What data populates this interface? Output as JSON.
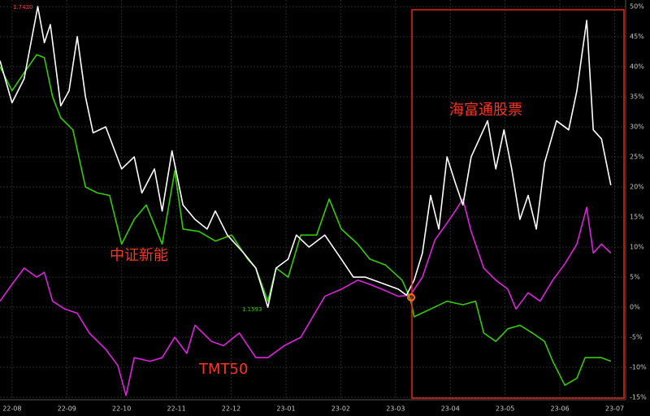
{
  "chart_data": {
    "type": "line",
    "xlim": [
      -0.22,
      11.2
    ],
    "ylim": [
      -15.4,
      51.1
    ],
    "xticks": [
      {
        "value": 0,
        "label": "22-08"
      },
      {
        "value": 1,
        "label": "22-09"
      },
      {
        "value": 2,
        "label": "22-10"
      },
      {
        "value": 3,
        "label": "22-11"
      },
      {
        "value": 4,
        "label": "22-12"
      },
      {
        "value": 5,
        "label": "23-01"
      },
      {
        "value": 6,
        "label": "23-02"
      },
      {
        "value": 7,
        "label": "23-03"
      },
      {
        "value": 8,
        "label": "23-04"
      },
      {
        "value": 9,
        "label": "23-05"
      },
      {
        "value": 10,
        "label": "23-06"
      },
      {
        "value": 11,
        "label": "23-07"
      }
    ],
    "yticks": [
      {
        "value": 50,
        "label": "50%"
      },
      {
        "value": 45,
        "label": "45%"
      },
      {
        "value": 40,
        "label": "40%"
      },
      {
        "value": 35,
        "label": "35%"
      },
      {
        "value": 30,
        "label": "30%"
      },
      {
        "value": 25,
        "label": "25%"
      },
      {
        "value": 20,
        "label": "20%"
      },
      {
        "value": 15,
        "label": "15%"
      },
      {
        "value": 10,
        "label": "10%"
      },
      {
        "value": 5,
        "label": "5%"
      },
      {
        "value": 0,
        "label": "0%"
      },
      {
        "value": -5,
        "label": "-5%"
      },
      {
        "value": -10,
        "label": "-10%"
      },
      {
        "value": -15,
        "label": "-15%"
      }
    ],
    "grid": true,
    "annotations": {
      "high": "1.7420",
      "low": "1.1593"
    },
    "series": [
      {
        "name": "海富通股票",
        "color": "#ffffff",
        "x": [
          -0.22,
          0,
          0.22,
          0.47,
          0.59,
          0.7,
          0.89,
          1.04,
          1.19,
          1.34,
          1.48,
          1.71,
          2.0,
          2.23,
          2.37,
          2.6,
          2.74,
          2.92,
          3.12,
          3.34,
          3.56,
          3.71,
          3.93,
          4.23,
          4.45,
          4.67,
          4.82,
          5.04,
          5.19,
          5.42,
          5.71,
          6.01,
          6.23,
          6.45,
          6.75,
          7.05,
          7.2,
          7.34,
          7.49,
          7.64,
          7.79,
          7.94,
          8.09,
          8.23,
          8.38,
          8.53,
          8.68,
          8.83,
          8.98,
          9.12,
          9.27,
          9.42,
          9.57,
          9.72,
          9.94,
          10.16,
          10.31,
          10.49,
          10.61,
          10.76,
          10.93
        ],
        "values": [
          41,
          34,
          38,
          50,
          44,
          47,
          33.5,
          36,
          45,
          35,
          29,
          30,
          23,
          25,
          19,
          23,
          16,
          26,
          17,
          14.6,
          13,
          16,
          12,
          9,
          6.5,
          0,
          6.5,
          8,
          12,
          10,
          12,
          8,
          5,
          5,
          4,
          3,
          2,
          4.5,
          9,
          18.6,
          13,
          25,
          20.7,
          17,
          25,
          28,
          31,
          23,
          29.5,
          23,
          14.6,
          18.6,
          13,
          24,
          31,
          29.5,
          36,
          47.7,
          29.5,
          28,
          20.3
        ]
      },
      {
        "name": "中证新能",
        "color": "#33cc00",
        "x": [
          -0.22,
          0,
          0.22,
          0.45,
          0.59,
          0.74,
          0.89,
          1.11,
          1.34,
          1.56,
          1.78,
          2.0,
          2.23,
          2.45,
          2.74,
          2.97,
          3.12,
          3.41,
          3.71,
          4.01,
          4.3,
          4.45,
          4.67,
          4.82,
          5.04,
          5.27,
          5.56,
          5.79,
          6.01,
          6.31,
          6.53,
          6.82,
          7.12,
          7.27,
          7.34,
          7.64,
          7.94,
          8.23,
          8.46,
          8.61,
          8.83,
          9.05,
          9.27,
          9.5,
          9.72,
          9.87,
          10.09,
          10.31,
          10.46,
          10.76,
          10.93
        ],
        "values": [
          40,
          36,
          39,
          42,
          41.5,
          35,
          31.5,
          29.5,
          20,
          19,
          18.6,
          10.5,
          14.6,
          17,
          10.5,
          22.7,
          13,
          12.6,
          11,
          12,
          8,
          6.5,
          1,
          6.5,
          5,
          12,
          12,
          18,
          13,
          10.5,
          8,
          7,
          4.5,
          1.4,
          -1.6,
          -0.3,
          1,
          0.4,
          1,
          -4.3,
          -5.7,
          -3.6,
          -3,
          -4.3,
          -5.7,
          -9,
          -13,
          -11.8,
          -8.4,
          -8.4,
          -9
        ]
      },
      {
        "name": "TMT50",
        "color": "#dd22dd",
        "x": [
          -0.22,
          0,
          0.22,
          0.45,
          0.59,
          0.74,
          0.96,
          1.19,
          1.41,
          1.71,
          1.93,
          2.08,
          2.23,
          2.52,
          2.74,
          2.97,
          3.19,
          3.34,
          3.64,
          3.86,
          4.15,
          4.45,
          4.67,
          4.97,
          5.27,
          5.49,
          5.71,
          6.01,
          6.31,
          6.53,
          6.75,
          7.05,
          7.27,
          7.49,
          7.72,
          7.94,
          8.09,
          8.23,
          8.38,
          8.61,
          8.83,
          9.05,
          9.2,
          9.42,
          9.64,
          9.87,
          10.09,
          10.31,
          10.49,
          10.61,
          10.76,
          10.93
        ],
        "values": [
          1,
          3.8,
          6.5,
          5,
          5.8,
          1,
          -0.3,
          -1,
          -4.3,
          -7,
          -9.7,
          -14.7,
          -8.4,
          -9,
          -8.4,
          -5,
          -7.7,
          -3,
          -5.7,
          -6.4,
          -4.3,
          -8.4,
          -8.4,
          -6.4,
          -5,
          -1.6,
          1.8,
          3,
          4.5,
          3.8,
          3,
          1.8,
          2,
          5,
          11.2,
          14,
          16,
          18,
          12.6,
          6.5,
          4.5,
          3,
          -0.3,
          2.4,
          1,
          4.5,
          7.2,
          10.5,
          16.6,
          9,
          10.5,
          9
        ]
      }
    ]
  }
}
